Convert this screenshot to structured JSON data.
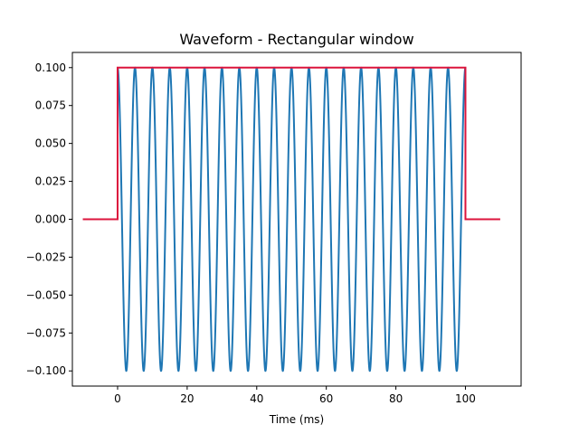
{
  "chart_data": {
    "type": "line",
    "title": "Waveform - Rectangular window",
    "xlabel": "Time (ms)",
    "ylabel": "",
    "xlim": [
      -13,
      116
    ],
    "ylim": [
      -0.11,
      0.11
    ],
    "x_ticks": [
      0,
      20,
      40,
      60,
      80,
      100
    ],
    "x_tick_labels": [
      "0",
      "20",
      "40",
      "60",
      "80",
      "100"
    ],
    "y_ticks": [
      0.1,
      0.075,
      0.05,
      0.025,
      0.0,
      -0.025,
      -0.05,
      -0.075,
      -0.1
    ],
    "y_tick_labels": [
      "0.100",
      "0.075",
      "0.050",
      "0.025",
      "0.000",
      "−0.025",
      "−0.050",
      "−0.075",
      "−0.100"
    ],
    "grid": false,
    "legend": "none",
    "series": [
      {
        "kind": "sinusoid",
        "color": "#1f77b4",
        "amplitude": 0.1,
        "frequency_cycles_per_ms": 0.2,
        "phase": "cosine",
        "x_start": 0,
        "x_end": 100
      },
      {
        "kind": "rectangular window",
        "color": "#dc143c",
        "x": [
          -10,
          0,
          0,
          100,
          100,
          110
        ],
        "y": [
          0,
          0,
          0.1,
          0.1,
          0,
          0
        ]
      }
    ]
  }
}
